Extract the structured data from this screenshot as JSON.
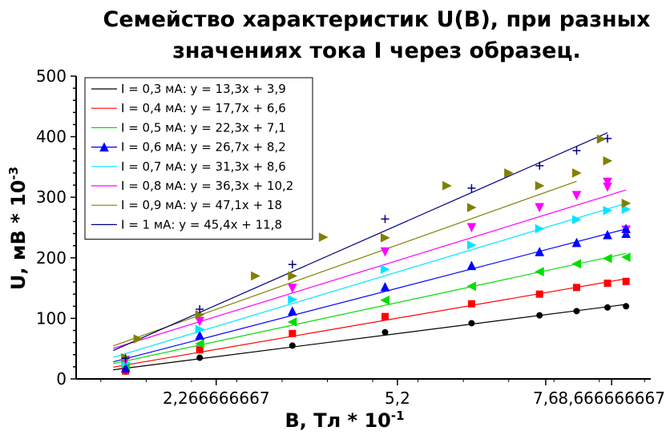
{
  "chart_data": {
    "type": "scatter",
    "title_line1": "Семейство характеристик U(B), при разных",
    "title_line2": "значениях тока I через образец.",
    "xlabel_main": "B, Тл * 10",
    "xlabel_exp": "-1",
    "ylabel_main": "U, мВ * 10",
    "ylabel_exp": "-3",
    "xlim": [
      0,
      9.3
    ],
    "ylim": [
      0,
      500
    ],
    "x_ticks": [
      2.266666667,
      5.2,
      7.6,
      8.666666667
    ],
    "x_tick_labels": [
      "2,266666667",
      "5,2",
      "7,6",
      "8,666666667"
    ],
    "y_ticks": [
      0,
      100,
      200,
      300,
      400,
      500
    ],
    "y_tick_labels": [
      "0",
      "100",
      "200",
      "300",
      "400",
      "500"
    ],
    "legend_position": "top-left",
    "x": [
      0.8,
      2.0,
      3.5,
      5.0,
      6.4,
      7.5,
      8.1,
      8.6,
      8.9
    ],
    "series": [
      {
        "name": "I = 0,3 мА: y = 13,3x + 3,9",
        "color": "#000000",
        "marker": "circle",
        "line": [
          0.6,
          8.9
        ],
        "values": [
          12,
          35,
          55,
          77,
          92,
          105,
          112,
          118,
          120
        ]
      },
      {
        "name": "I = 0,4 мА: y = 17,7x + 6,6",
        "color": "#ff0000",
        "marker": "square",
        "line": [
          0.6,
          8.9
        ],
        "values": [
          13,
          48,
          75,
          103,
          124,
          140,
          151,
          158,
          161
        ]
      },
      {
        "name": "I = 0,5 мА: y = 22,3x + 7,1",
        "color": "#00dd00",
        "marker": "tri-left",
        "line": [
          0.6,
          8.9
        ],
        "values": [
          20,
          58,
          94,
          130,
          153,
          177,
          190,
          199,
          201
        ]
      },
      {
        "name": "I = 0,6 мА: y = 26,7x + 8,2",
        "color": "#0000ff",
        "marker": "tri-up",
        "line": [
          0.6,
          8.9
        ],
        "values": [
          18,
          72,
          112,
          152,
          187,
          210,
          225,
          238,
          240
        ]
      },
      {
        "name": "I = 0,7 мА: y = 31,3x + 8,6",
        "color": "#00e5ff",
        "marker": "tri-right",
        "line": [
          0.6,
          8.9
        ],
        "values": [
          27,
          82,
          131,
          181,
          221,
          248,
          263,
          278,
          280
        ]
      },
      {
        "name": "I = 0,8 мА: y = 36,3x + 10,2",
        "color": "#ff00ff",
        "marker": "tri-down",
        "line": [
          0.6,
          8.9
        ],
        "values": [
          31,
          95,
          150,
          210,
          250,
          283,
          303,
          317,
          246
        ]
      },
      {
        "name": "I = 0,9 мА: y = 47,1x + 18",
        "color": "#808000",
        "marker": "tri-right",
        "line": [
          0.6,
          8.1
        ],
        "values": [
          35,
          106,
          170,
          233,
          283,
          319,
          340,
          360,
          290
        ]
      },
      {
        "name": "I = 1 мА: y = 45,4x + 11,8",
        "color": "#000080",
        "marker": "plus",
        "line": [
          0.6,
          8.6
        ],
        "values": [
          34,
          115,
          189,
          264,
          315,
          352,
          377,
          397,
          null
        ]
      }
    ],
    "extra_points": [
      {
        "series": 6,
        "x": [
          1.0,
          2.9,
          4.0,
          6.0,
          7.0,
          8.5
        ],
        "values": [
          66,
          170,
          234,
          319,
          340,
          396
        ]
      },
      {
        "series": 5,
        "x": [
          8.6
        ],
        "values": [
          325
        ]
      },
      {
        "series": 3,
        "x": [
          8.9
        ],
        "values": [
          248
        ]
      }
    ],
    "grid": false
  }
}
